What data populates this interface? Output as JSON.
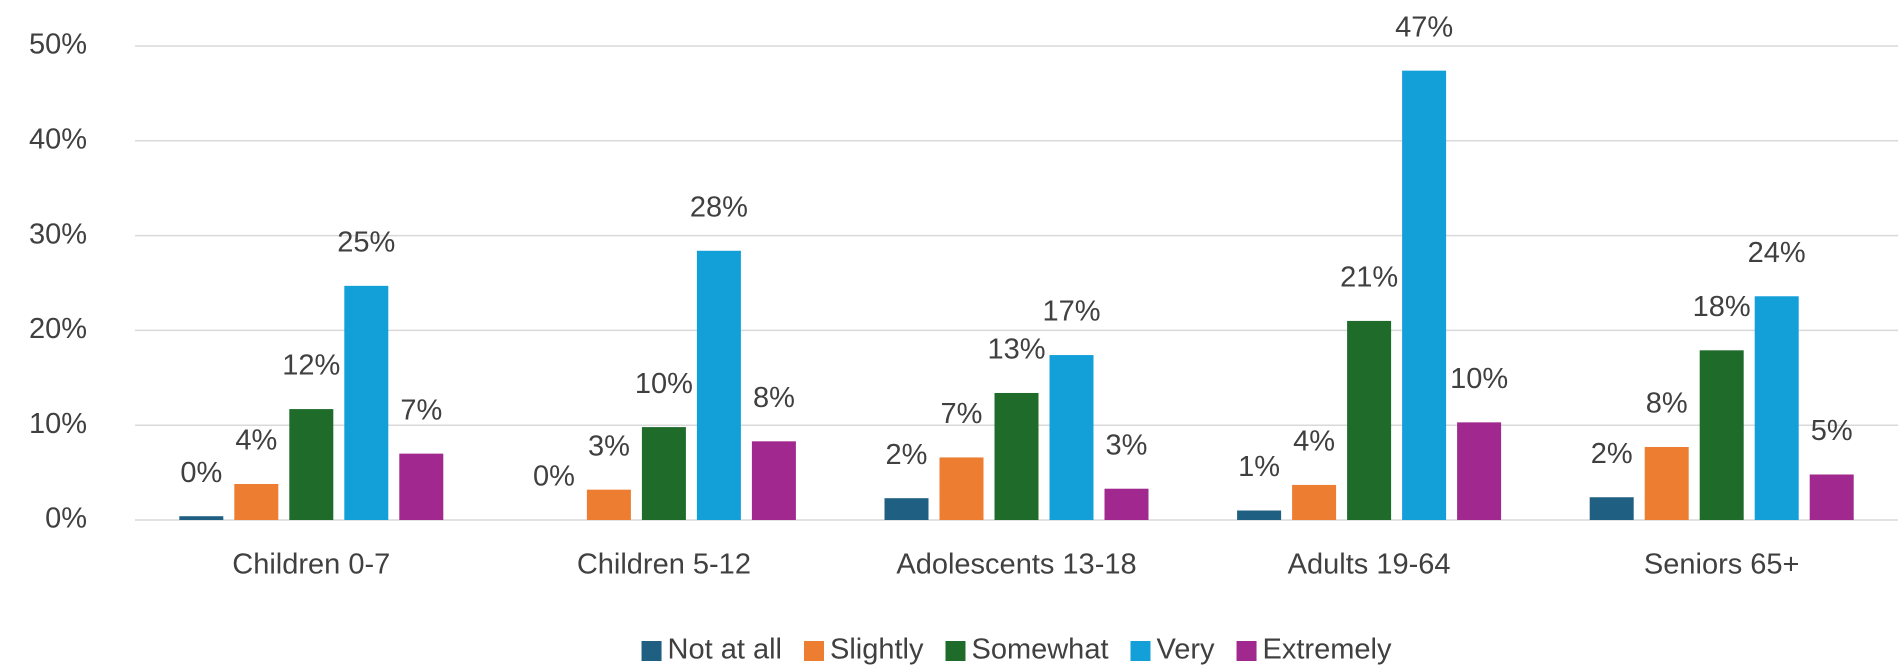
{
  "chart_data": {
    "type": "bar",
    "categories": [
      "Children 0-7",
      "Children 5-12",
      "Adolescents 13-18",
      "Adults 19-64",
      "Seniors 65+"
    ],
    "series": [
      {
        "name": "Not at all",
        "color": "#1f5f82",
        "values": [
          0.4,
          0,
          2.3,
          1.0,
          2.4
        ],
        "value_labels": [
          "0%",
          "0%",
          "2%",
          "1%",
          "2%"
        ]
      },
      {
        "name": "Slightly",
        "color": "#ed7d31",
        "values": [
          3.8,
          3.2,
          6.6,
          3.7,
          7.7
        ],
        "value_labels": [
          "4%",
          "3%",
          "7%",
          "4%",
          "8%"
        ]
      },
      {
        "name": "Somewhat",
        "color": "#1e6b2a",
        "values": [
          11.7,
          9.8,
          13.4,
          21.0,
          17.9
        ],
        "value_labels": [
          "12%",
          "10%",
          "13%",
          "21%",
          "18%"
        ]
      },
      {
        "name": "Very",
        "color": "#13a0d8",
        "values": [
          24.7,
          28.4,
          17.4,
          47.4,
          23.6
        ],
        "value_labels": [
          "25%",
          "28%",
          "17%",
          "47%",
          "24%"
        ]
      },
      {
        "name": "Extremely",
        "color": "#a0288f",
        "values": [
          7.0,
          8.3,
          3.3,
          10.3,
          4.8
        ],
        "value_labels": [
          "7%",
          "8%",
          "3%",
          "10%",
          "5%"
        ]
      }
    ],
    "ylim": [
      0,
      50
    ],
    "yticks": [
      {
        "value": 0,
        "label": "0%"
      },
      {
        "value": 10,
        "label": "10%"
      },
      {
        "value": 20,
        "label": "20%"
      },
      {
        "value": 30,
        "label": "30%"
      },
      {
        "value": 40,
        "label": "40%"
      },
      {
        "value": 50,
        "label": "50%"
      }
    ],
    "grid": true,
    "legend": "bottom"
  }
}
